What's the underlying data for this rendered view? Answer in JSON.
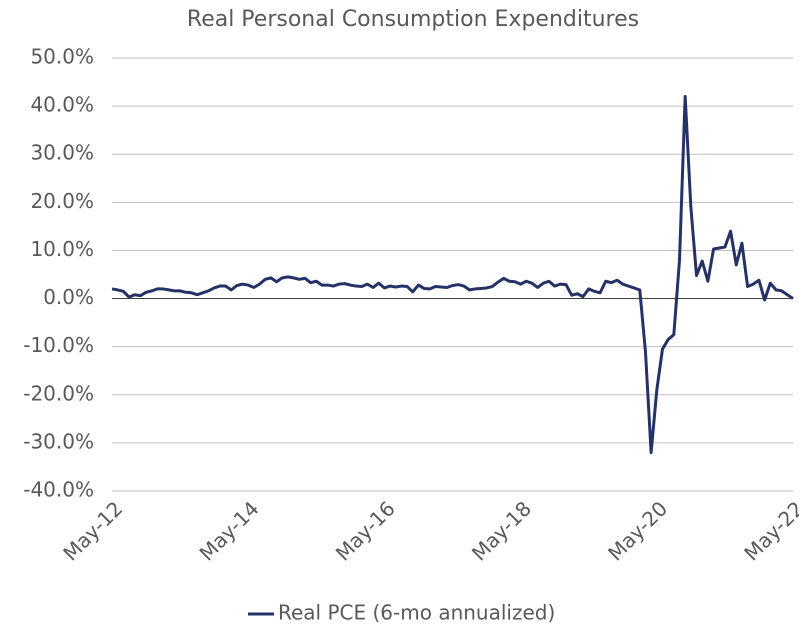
{
  "chart_data": {
    "type": "line",
    "title": "Real Personal Consumption Expenditures",
    "categories": [
      "May-12",
      null,
      null,
      null,
      null,
      null,
      null,
      null,
      null,
      null,
      null,
      null,
      null,
      null,
      null,
      null,
      null,
      null,
      null,
      null,
      null,
      null,
      null,
      null,
      "May-14",
      null,
      null,
      null,
      null,
      null,
      null,
      null,
      null,
      null,
      null,
      null,
      null,
      null,
      null,
      null,
      null,
      null,
      null,
      null,
      null,
      null,
      null,
      null,
      "May-16",
      null,
      null,
      null,
      null,
      null,
      null,
      null,
      null,
      null,
      null,
      null,
      null,
      null,
      null,
      null,
      null,
      null,
      null,
      null,
      null,
      null,
      null,
      null,
      "May-18",
      null,
      null,
      null,
      null,
      null,
      null,
      null,
      null,
      null,
      null,
      null,
      null,
      null,
      null,
      null,
      null,
      null,
      null,
      null,
      null,
      null,
      null,
      null,
      "May-20",
      null,
      null,
      null,
      null,
      null,
      null,
      null,
      null,
      null,
      null,
      null,
      null,
      null,
      null,
      null,
      null,
      null,
      null,
      null,
      null,
      null,
      null,
      null,
      "May-22"
    ],
    "series": [
      {
        "name": "Real PCE (6-mo annualized)",
        "color": "#253266",
        "values": [
          2.0,
          1.8,
          1.5,
          0.3,
          0.8,
          0.6,
          1.3,
          1.6,
          2.0,
          2.0,
          1.8,
          1.6,
          1.6,
          1.3,
          1.2,
          0.8,
          1.2,
          1.6,
          2.2,
          2.6,
          2.6,
          1.8,
          2.7,
          3.0,
          2.8,
          2.3,
          3.0,
          4.0,
          4.3,
          3.5,
          4.3,
          4.5,
          4.3,
          4.0,
          4.2,
          3.3,
          3.6,
          2.8,
          2.8,
          2.6,
          3.0,
          3.1,
          2.8,
          2.6,
          2.5,
          3.0,
          2.3,
          3.2,
          2.2,
          2.6,
          2.4,
          2.6,
          2.5,
          1.4,
          2.8,
          2.1,
          2.0,
          2.5,
          2.4,
          2.3,
          2.7,
          2.9,
          2.6,
          1.8,
          2.0,
          2.1,
          2.2,
          2.5,
          3.4,
          4.2,
          3.6,
          3.5,
          3.0,
          3.6,
          3.2,
          2.3,
          3.2,
          3.6,
          2.6,
          3.0,
          2.9,
          0.7,
          1.0,
          0.4,
          2.0,
          1.5,
          1.2,
          3.6,
          3.3,
          3.8,
          3.0,
          2.6,
          2.2,
          1.8,
          -11,
          -32,
          -19,
          -10.5,
          -8.5,
          -7.5,
          8,
          42,
          19,
          4.8,
          7.8,
          3.6,
          10.3,
          10.5,
          10.7,
          14,
          7,
          11.5,
          2.5,
          3.0,
          3.8,
          -0.3,
          3.2,
          1.8,
          1.6,
          0.8,
          0.0
        ]
      }
    ],
    "ylim": [
      -40,
      50
    ],
    "yticks": [
      {
        "value": -40,
        "label": "-40.0%"
      },
      {
        "value": -30,
        "label": "-30.0%"
      },
      {
        "value": -20,
        "label": "-20.0%"
      },
      {
        "value": -10,
        "label": "-10.0%"
      },
      {
        "value": 0,
        "label": "0.0%"
      },
      {
        "value": 10,
        "label": "10.0%"
      },
      {
        "value": 20,
        "label": "20.0%"
      },
      {
        "value": 30,
        "label": "30.0%"
      },
      {
        "value": 40,
        "label": "40.0%"
      },
      {
        "value": 50,
        "label": "50.0%"
      }
    ],
    "grid": true,
    "legend": "bottom"
  }
}
